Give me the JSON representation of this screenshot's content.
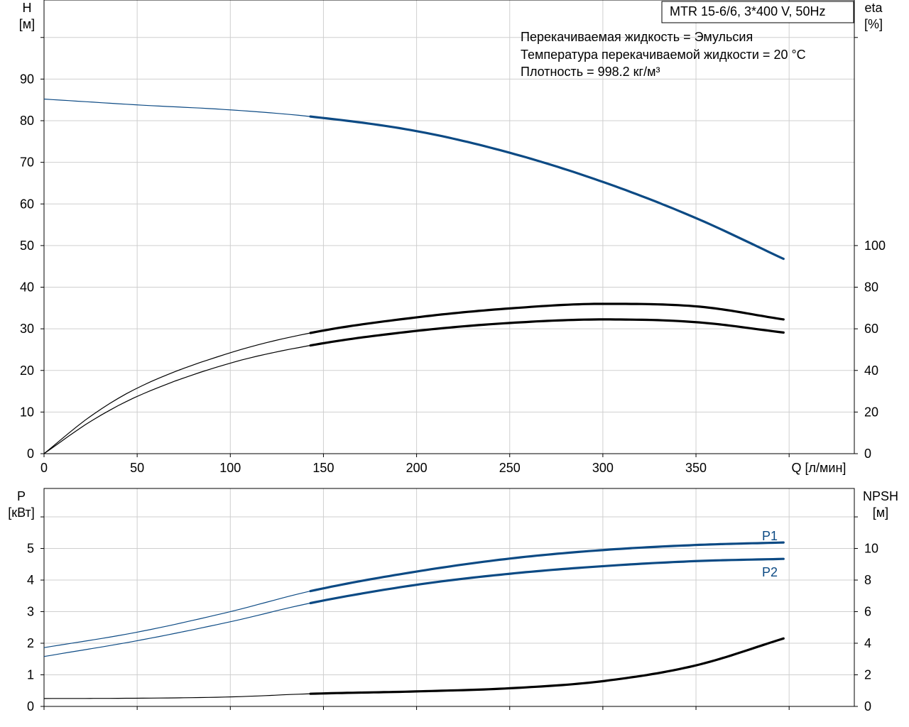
{
  "model_box": "MTR 15-6/6, 3*400 V, 50Hz",
  "fluid_info": [
    "Перекачиваемая жидкость = Эмульсия",
    "Температура перекачиваемой жидкости = 20 °C",
    "Плотность = 998.2 кг/м³"
  ],
  "colors": {
    "curve_blue": "#0c4a84",
    "curve_black": "#000000",
    "grid": "#cfcfcf"
  },
  "chart_data": [
    {
      "id": "top",
      "type": "line",
      "x_label": "Q [л/мин]",
      "x_ticks": [
        0,
        50,
        100,
        150,
        200,
        250,
        300,
        350
      ],
      "x_range": [
        0,
        435
      ],
      "y_left_label": [
        "H",
        "[м]"
      ],
      "y_left_ticks": [
        0,
        10,
        20,
        30,
        40,
        50,
        60,
        70,
        80,
        90
      ],
      "y_left_range": [
        0,
        109
      ],
      "y_right_label": [
        "eta",
        "[%]"
      ],
      "y_right_ticks": [
        0,
        20,
        40,
        60,
        80,
        100
      ],
      "y_right_range": [
        0,
        218
      ],
      "grid": true,
      "series": [
        {
          "color": "#0c4a84",
          "axis": "left",
          "op_start": 143,
          "x": [
            0,
            50,
            100,
            143,
            200,
            250,
            300,
            350,
            397
          ],
          "y": [
            85.2,
            83.8,
            82.6,
            81.0,
            77.5,
            72.3,
            65.3,
            56.6,
            46.8
          ]
        },
        {
          "color": "#000000",
          "axis": "right",
          "op_start": 143,
          "x": [
            0,
            25,
            50,
            100,
            143,
            200,
            250,
            300,
            350,
            397
          ],
          "y": [
            0,
            18,
            31.5,
            48.5,
            58,
            65.5,
            69.8,
            72,
            70.8,
            64.5
          ]
        },
        {
          "color": "#000000",
          "axis": "right",
          "op_start": 143,
          "x": [
            0,
            25,
            50,
            100,
            143,
            200,
            250,
            300,
            350,
            397
          ],
          "y": [
            0,
            15.5,
            27.5,
            43.5,
            52,
            59,
            62.8,
            64.5,
            63.2,
            58.2
          ]
        }
      ]
    },
    {
      "id": "bottom",
      "type": "line",
      "x_range": [
        0,
        435
      ],
      "y_left_label": [
        "P",
        "[кВт]"
      ],
      "y_left_ticks": [
        0,
        1,
        2,
        3,
        4,
        5
      ],
      "y_left_range": [
        0,
        6.9
      ],
      "y_right_label": [
        "NPSH",
        "[м]"
      ],
      "y_right_ticks": [
        0,
        2,
        4,
        6,
        8,
        10
      ],
      "y_right_range": [
        0,
        13.8
      ],
      "grid": true,
      "series": [
        {
          "name": "P1",
          "color": "#0c4a84",
          "axis": "left",
          "op_start": 143,
          "x": [
            0,
            50,
            100,
            143,
            200,
            250,
            300,
            350,
            397
          ],
          "y": [
            1.86,
            2.35,
            3.0,
            3.65,
            4.27,
            4.68,
            4.95,
            5.11,
            5.19
          ]
        },
        {
          "name": "P2",
          "color": "#0c4a84",
          "axis": "left",
          "op_start": 143,
          "x": [
            0,
            50,
            100,
            143,
            200,
            250,
            300,
            350,
            397
          ],
          "y": [
            1.58,
            2.08,
            2.68,
            3.27,
            3.85,
            4.2,
            4.44,
            4.6,
            4.67
          ]
        },
        {
          "color": "#000000",
          "axis": "right",
          "op_start": 143,
          "x": [
            0,
            50,
            100,
            143,
            200,
            250,
            300,
            350,
            397
          ],
          "y": [
            0.5,
            0.52,
            0.6,
            0.8,
            0.95,
            1.15,
            1.6,
            2.6,
            4.3
          ]
        }
      ]
    }
  ]
}
